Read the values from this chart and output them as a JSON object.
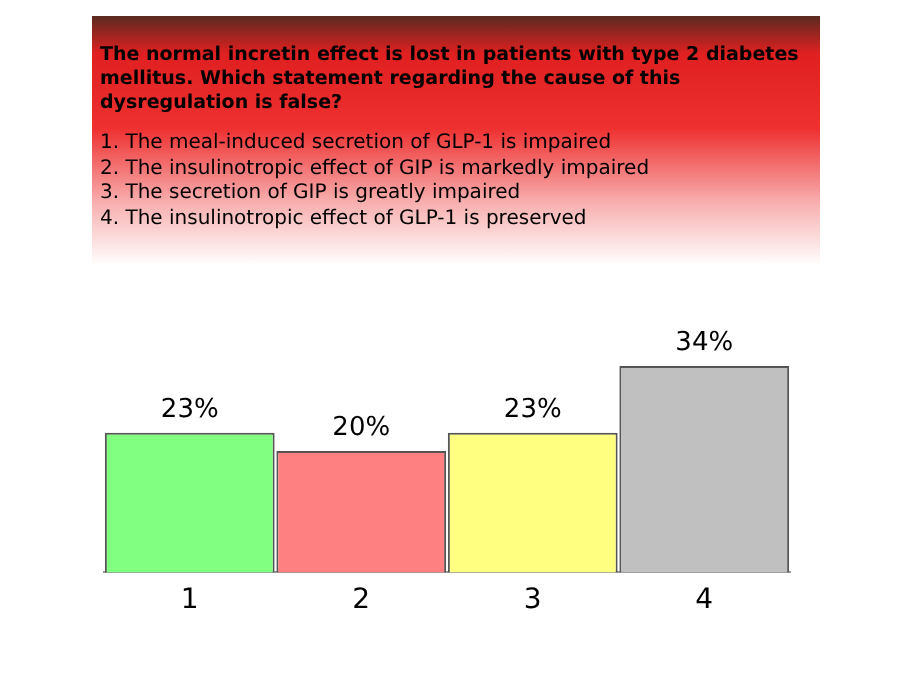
{
  "chart_data": {
    "type": "bar",
    "title": "The normal incretin effect is lost in patients with type 2 diabetes mellitus. Which statement regarding the cause of this dysregulation is false?",
    "annotations": [
      "1. The meal-induced secretion of GLP-1 is impaired",
      "2. The insulinotropic effect of GIP is markedly impaired",
      "3. The secretion of GIP is greatly impaired",
      "4. The insulinotropic effect of GLP-1 is preserved"
    ],
    "categories": [
      "1",
      "2",
      "3",
      "4"
    ],
    "values": [
      23,
      20,
      23,
      34
    ],
    "colors": [
      "#80ff80",
      "#ff8080",
      "#ffff80",
      "#c0c0c0"
    ],
    "value_labels": [
      "23%",
      "20%",
      "23%",
      "34%"
    ],
    "legend": false,
    "grid": false
  }
}
